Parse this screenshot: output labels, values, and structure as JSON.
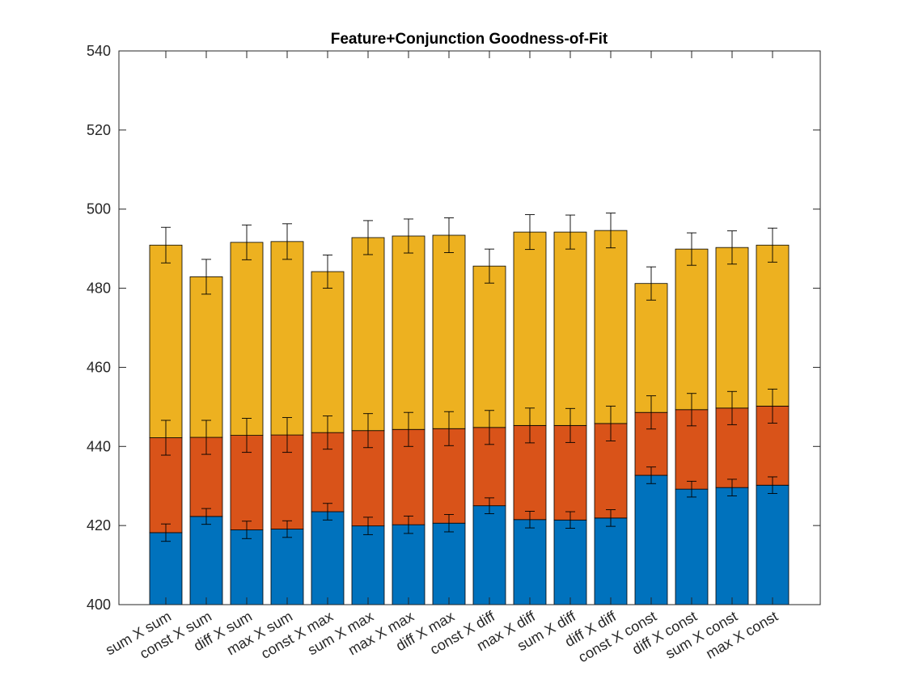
{
  "chart_data": {
    "type": "bar",
    "stacked": true,
    "title": "Feature+Conjunction Goodness-of-Fit",
    "xlabel": "",
    "ylabel": "",
    "ylim": [
      400,
      540
    ],
    "yticks": [
      400,
      420,
      440,
      460,
      480,
      500,
      520,
      540
    ],
    "grid": false,
    "categories": [
      "sum X sum",
      "const X sum",
      "diff X sum",
      "max X sum",
      "const X max",
      "sum X max",
      "max X max",
      "diff X max",
      "const X diff",
      "max X diff",
      "sum X diff",
      "diff X diff",
      "const X const",
      "diff X const",
      "sum X const",
      "max X const"
    ],
    "series": [
      {
        "color": "#0072BD",
        "cumulative_values": [
          418.2,
          422.3,
          418.9,
          419.1,
          423.5,
          419.9,
          420.2,
          420.6,
          425.0,
          421.5,
          421.4,
          421.9,
          432.7,
          429.2,
          429.6,
          430.2
        ],
        "error": [
          2.2,
          2.0,
          2.2,
          2.1,
          2.1,
          2.2,
          2.2,
          2.2,
          2.0,
          2.1,
          2.1,
          2.1,
          2.1,
          2.0,
          2.1,
          2.1
        ]
      },
      {
        "color": "#D95319",
        "cumulative_values": [
          442.2,
          442.3,
          442.8,
          442.9,
          443.5,
          444.0,
          444.3,
          444.5,
          444.8,
          445.3,
          445.3,
          445.8,
          448.6,
          449.3,
          449.7,
          450.2
        ],
        "error": [
          4.4,
          4.3,
          4.3,
          4.4,
          4.2,
          4.3,
          4.3,
          4.3,
          4.3,
          4.4,
          4.3,
          4.4,
          4.2,
          4.1,
          4.2,
          4.3
        ]
      },
      {
        "color": "#EDB120",
        "cumulative_values": [
          490.9,
          482.9,
          491.6,
          491.8,
          484.2,
          492.8,
          493.2,
          493.4,
          485.6,
          494.2,
          494.2,
          494.6,
          481.2,
          489.9,
          490.3,
          490.9
        ],
        "error": [
          4.5,
          4.4,
          4.4,
          4.5,
          4.2,
          4.3,
          4.3,
          4.4,
          4.3,
          4.4,
          4.3,
          4.4,
          4.2,
          4.1,
          4.2,
          4.3
        ]
      }
    ]
  }
}
